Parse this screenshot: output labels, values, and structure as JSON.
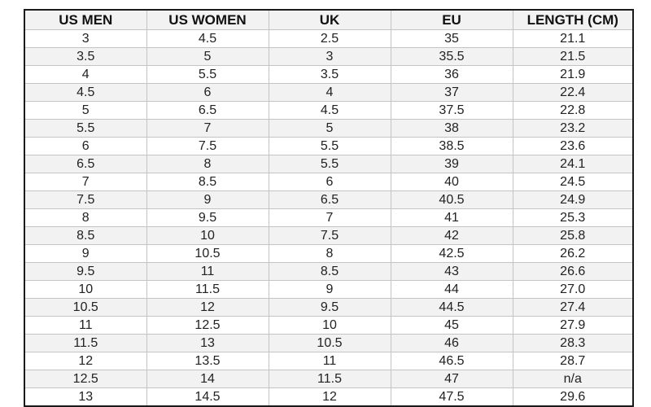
{
  "chart_data": {
    "type": "table",
    "columns": [
      "US MEN",
      "US WOMEN",
      "UK",
      "EU",
      "LENGTH (CM)"
    ],
    "rows": [
      [
        "3",
        "4.5",
        "2.5",
        "35",
        "21.1"
      ],
      [
        "3.5",
        "5",
        "3",
        "35.5",
        "21.5"
      ],
      [
        "4",
        "5.5",
        "3.5",
        "36",
        "21.9"
      ],
      [
        "4.5",
        "6",
        "4",
        "37",
        "22.4"
      ],
      [
        "5",
        "6.5",
        "4.5",
        "37.5",
        "22.8"
      ],
      [
        "5.5",
        "7",
        "5",
        "38",
        "23.2"
      ],
      [
        "6",
        "7.5",
        "5.5",
        "38.5",
        "23.6"
      ],
      [
        "6.5",
        "8",
        "5.5",
        "39",
        "24.1"
      ],
      [
        "7",
        "8.5",
        "6",
        "40",
        "24.5"
      ],
      [
        "7.5",
        "9",
        "6.5",
        "40.5",
        "24.9"
      ],
      [
        "8",
        "9.5",
        "7",
        "41",
        "25.3"
      ],
      [
        "8.5",
        "10",
        "7.5",
        "42",
        "25.8"
      ],
      [
        "9",
        "10.5",
        "8",
        "42.5",
        "26.2"
      ],
      [
        "9.5",
        "11",
        "8.5",
        "43",
        "26.6"
      ],
      [
        "10",
        "11.5",
        "9",
        "44",
        "27.0"
      ],
      [
        "10.5",
        "12",
        "9.5",
        "44.5",
        "27.4"
      ],
      [
        "11",
        "12.5",
        "10",
        "45",
        "27.9"
      ],
      [
        "11.5",
        "13",
        "10.5",
        "46",
        "28.3"
      ],
      [
        "12",
        "13.5",
        "11",
        "46.5",
        "28.7"
      ],
      [
        "12.5",
        "14",
        "11.5",
        "47",
        "n/a"
      ],
      [
        "13",
        "14.5",
        "12",
        "47.5",
        "29.6"
      ]
    ]
  },
  "colors": {
    "border": "#1a1a1a",
    "grid": "#c4c4c4",
    "stripe": "#f2f2f2",
    "text": "#222222"
  }
}
